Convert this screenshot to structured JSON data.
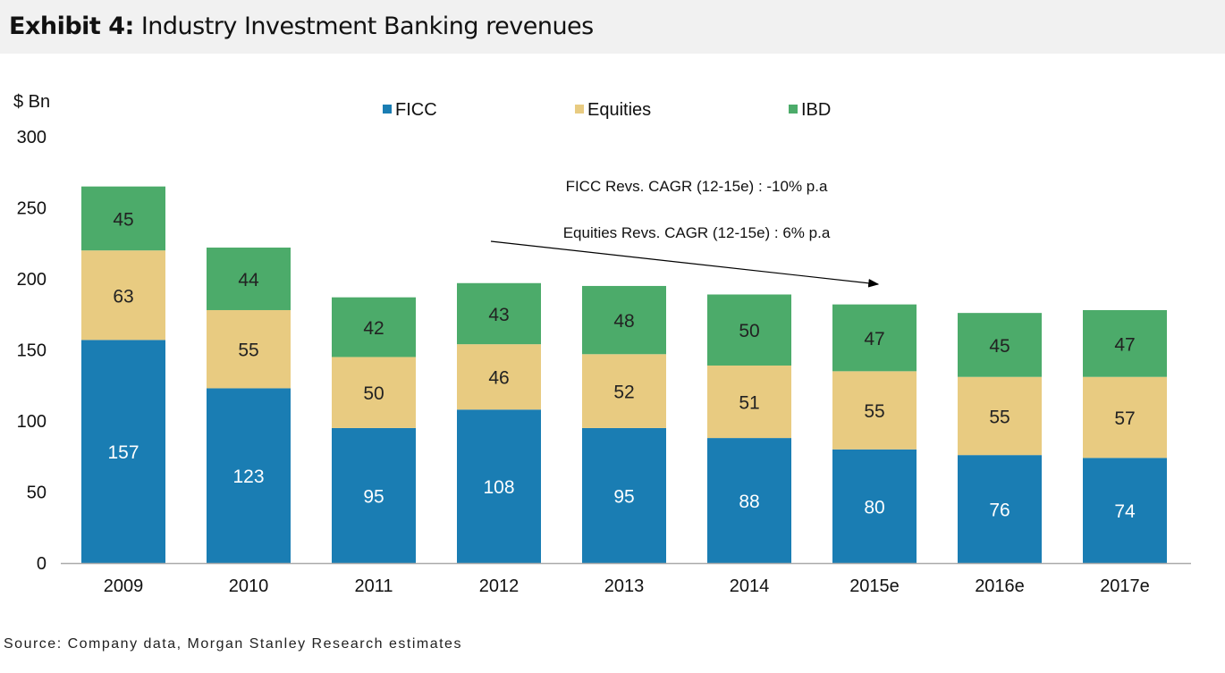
{
  "header": {
    "exhibit_label": "Exhibit 4:",
    "title": "Industry Investment Banking revenues"
  },
  "source": "Source: Company data, Morgan Stanley Research estimates",
  "chart_data": {
    "type": "bar",
    "stacked": true,
    "ylabel": "$ Bn",
    "ylim": [
      0,
      300
    ],
    "yticks": [
      0,
      50,
      100,
      150,
      200,
      250,
      300
    ],
    "grid": false,
    "legend_position": "top",
    "categories": [
      "2009",
      "2010",
      "2011",
      "2012",
      "2013",
      "2014",
      "2015e",
      "2016e",
      "2017e"
    ],
    "series": [
      {
        "name": "FICC",
        "color": "#1a7db3",
        "values": [
          157,
          123,
          95,
          108,
          95,
          88,
          80,
          76,
          74
        ]
      },
      {
        "name": "Equities",
        "color": "#e8cb81",
        "values": [
          63,
          55,
          50,
          46,
          52,
          51,
          55,
          55,
          57
        ]
      },
      {
        "name": "IBD",
        "color": "#4cab6a",
        "values": [
          45,
          44,
          42,
          43,
          48,
          50,
          47,
          45,
          47
        ]
      }
    ],
    "annotations": [
      "FICC Revs. CAGR (12-15e) : -10% p.a",
      "Equities Revs. CAGR (12-15e) : 6% p.a"
    ]
  }
}
